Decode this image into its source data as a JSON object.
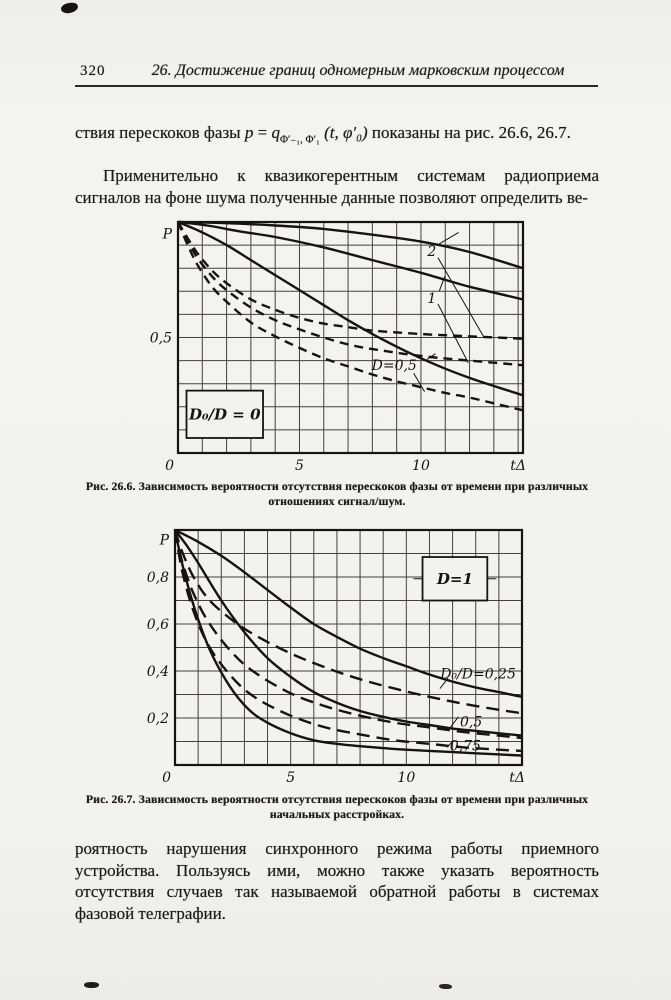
{
  "page": {
    "number": "320",
    "header_title": "26. Достижение границ одномерным марковским процессом"
  },
  "paragraphs": {
    "p1_pre": "ствия перескоков фазы",
    "formula": {
      "p": "p",
      "eq": " = ",
      "q": "q",
      "sub": "Φ′₋₁, Φ′₁",
      "args": "(t, φ′₀)"
    },
    "p1_post": "показаны на рис. 26.6, 26.7.",
    "p2": "Применительно к квазикогерентным системам радиоприема сигналов на фоне шума полученные данные позволяют определить ве-",
    "p3": "роятность нарушения синхронного режима работы приемного устройства. Пользуясь ими, можно также указать вероятность отсутствия случаев так называемой обратной работы в системах фазовой телеграфии."
  },
  "figures": [
    {
      "caption_line1": "Рис. 26.6. Зависимость вероятности отсутствия перескоков фазы от времени при различных",
      "caption_line2": "отношениях сигнал/шум."
    },
    {
      "caption_line1": "Рис. 26.7. Зависимость вероятности отсутствия перескоков фазы от времени при различных",
      "caption_line2": "начальных расстройках."
    }
  ],
  "chart_data": [
    {
      "type": "line",
      "title": "Рис. 26.6. Зависимость вероятности отсутствия перескоков фазы от времени при различных отношениях сигнал/шум.",
      "xlabel": "tΔ",
      "ylabel": "P",
      "xlim": [
        0,
        14.2
      ],
      "ylim": [
        0,
        1
      ],
      "grid": {
        "on": true,
        "x_step": 1,
        "y_step": 0.1
      },
      "legend_position": "none",
      "x_ticks": [
        {
          "v": 0,
          "label": "0"
        },
        {
          "v": 5,
          "label": "5"
        },
        {
          "v": 10,
          "label": "10"
        },
        {
          "v": 14.2,
          "label": "tΔ"
        }
      ],
      "y_ticks": [
        {
          "v": 0.95,
          "label": "P"
        },
        {
          "v": 0.5,
          "label": "0,5"
        }
      ],
      "box_label": {
        "text": "D₀/D = 0",
        "x1": 0.35,
        "y1": 0.065,
        "x2": 3.5,
        "y2": 0.27,
        "side_ticks": false
      },
      "series": [
        {
          "key": "d2-solid",
          "name": "D=2 (сплошная)",
          "style": "solid",
          "points": [
            [
              0,
              1
            ],
            [
              2,
              0.995
            ],
            [
              4,
              0.985
            ],
            [
              6,
              0.97
            ],
            [
              8,
              0.945
            ],
            [
              10,
              0.915
            ],
            [
              12,
              0.87
            ],
            [
              14.2,
              0.8
            ]
          ]
        },
        {
          "key": "d1-solid",
          "name": "D=1 (сплошная)",
          "style": "solid",
          "points": [
            [
              0,
              1
            ],
            [
              1.2,
              0.985
            ],
            [
              2.5,
              0.96
            ],
            [
              4,
              0.935
            ],
            [
              6,
              0.89
            ],
            [
              8,
              0.835
            ],
            [
              10,
              0.78
            ],
            [
              12,
              0.72
            ],
            [
              14.2,
              0.665
            ]
          ]
        },
        {
          "key": "d05-solid",
          "name": "D=0,5 (сплошная)",
          "style": "solid",
          "points": [
            [
              0,
              1
            ],
            [
              1,
              0.955
            ],
            [
              2,
              0.9
            ],
            [
              3,
              0.835
            ],
            [
              4,
              0.77
            ],
            [
              5,
              0.705
            ],
            [
              6,
              0.64
            ],
            [
              7,
              0.575
            ],
            [
              8,
              0.515
            ],
            [
              9,
              0.46
            ],
            [
              10,
              0.41
            ],
            [
              11,
              0.365
            ],
            [
              12,
              0.325
            ],
            [
              13,
              0.29
            ],
            [
              14.2,
              0.25
            ]
          ]
        },
        {
          "key": "d2-dashed",
          "name": "D=2 (штриховая)",
          "style": "dashed",
          "points": [
            [
              0,
              1
            ],
            [
              0.4,
              0.93
            ],
            [
              0.8,
              0.865
            ],
            [
              1.4,
              0.79
            ],
            [
              2,
              0.735
            ],
            [
              3,
              0.665
            ],
            [
              4,
              0.62
            ],
            [
              5,
              0.585
            ],
            [
              6,
              0.56
            ],
            [
              7,
              0.545
            ],
            [
              8,
              0.53
            ],
            [
              10,
              0.515
            ],
            [
              12,
              0.505
            ],
            [
              14.2,
              0.495
            ]
          ]
        },
        {
          "key": "d1-dashed",
          "name": "D=1 (штриховая)",
          "style": "dashed",
          "points": [
            [
              0,
              1
            ],
            [
              0.4,
              0.92
            ],
            [
              0.8,
              0.845
            ],
            [
              1.4,
              0.765
            ],
            [
              2,
              0.705
            ],
            [
              3,
              0.63
            ],
            [
              4,
              0.575
            ],
            [
              5,
              0.535
            ],
            [
              6,
              0.5
            ],
            [
              7,
              0.47
            ],
            [
              8,
              0.45
            ],
            [
              10,
              0.42
            ],
            [
              12,
              0.4
            ],
            [
              14.2,
              0.38
            ]
          ]
        },
        {
          "key": "d05-dashed",
          "name": "D=0,5 (штриховая)",
          "style": "dashed",
          "points": [
            [
              0,
              1
            ],
            [
              0.4,
              0.9
            ],
            [
              0.8,
              0.815
            ],
            [
              1.4,
              0.72
            ],
            [
              2,
              0.655
            ],
            [
              3,
              0.565
            ],
            [
              4,
              0.505
            ],
            [
              5,
              0.455
            ],
            [
              6,
              0.41
            ],
            [
              7,
              0.375
            ],
            [
              8,
              0.34
            ],
            [
              9,
              0.31
            ],
            [
              10,
              0.285
            ],
            [
              11,
              0.26
            ],
            [
              12,
              0.24
            ],
            [
              13,
              0.215
            ],
            [
              14.2,
              0.185
            ]
          ]
        }
      ],
      "labels": [
        {
          "text": "2",
          "x": 10.45,
          "y": 0.875,
          "leaders": [
            [
              [
                10.75,
                0.905
              ],
              [
                11.55,
                0.955
              ]
            ],
            [
              [
                10.7,
                0.845
              ],
              [
                12.6,
                0.5
              ]
            ]
          ]
        },
        {
          "text": "1",
          "x": 10.45,
          "y": 0.67,
          "leaders": [
            [
              [
                10.75,
                0.7
              ],
              [
                10.98,
                0.765
              ]
            ],
            [
              [
                10.7,
                0.645
              ],
              [
                11.95,
                0.39
              ]
            ]
          ]
        },
        {
          "text": "D=0,5",
          "x": 8.9,
          "y": 0.38,
          "leaders": [
            [
              [
                10.25,
                0.405
              ],
              [
                10.6,
                0.43
              ]
            ],
            [
              [
                9.7,
                0.345
              ],
              [
                10.15,
                0.265
              ]
            ]
          ]
        }
      ]
    },
    {
      "type": "line",
      "title": "Рис. 26.7. Зависимость вероятности отсутствия перескоков фазы от времени при различных начальных расстройках.",
      "xlabel": "tΔ",
      "ylabel": "P",
      "xlim": [
        0,
        15
      ],
      "ylim": [
        0,
        1
      ],
      "grid": {
        "on": true,
        "x_step": 1,
        "y_step": 0.1
      },
      "legend_position": "none",
      "x_ticks": [
        {
          "v": 0,
          "label": "0"
        },
        {
          "v": 5,
          "label": "5"
        },
        {
          "v": 10,
          "label": "10"
        },
        {
          "v": 15,
          "label": "tΔ"
        }
      ],
      "y_ticks": [
        {
          "v": 0.96,
          "label": "P"
        },
        {
          "v": 0.8,
          "label": "0,8"
        },
        {
          "v": 0.6,
          "label": "0,6"
        },
        {
          "v": 0.4,
          "label": "0,4"
        },
        {
          "v": 0.2,
          "label": "0,2"
        }
      ],
      "box_label": {
        "text": "D=1",
        "x1": 10.7,
        "y1": 0.7,
        "x2": 13.5,
        "y2": 0.885,
        "side_ticks": true
      },
      "series": [
        {
          "key": "r025-solid",
          "name": "D₀/D=0,25 (сплошная)",
          "style": "solid",
          "points": [
            [
              0,
              1
            ],
            [
              1,
              0.95
            ],
            [
              2,
              0.89
            ],
            [
              3,
              0.82
            ],
            [
              4,
              0.745
            ],
            [
              5,
              0.67
            ],
            [
              6,
              0.6
            ],
            [
              7,
              0.545
            ],
            [
              8,
              0.495
            ],
            [
              9,
              0.455
            ],
            [
              10,
              0.42
            ],
            [
              11,
              0.385
            ],
            [
              12,
              0.355
            ],
            [
              13,
              0.33
            ],
            [
              14,
              0.31
            ],
            [
              15,
              0.29
            ]
          ]
        },
        {
          "key": "r05-solid",
          "name": "D₀/D=0,5 (сплошная)",
          "style": "solid",
          "points": [
            [
              0,
              1
            ],
            [
              0.5,
              0.935
            ],
            [
              1,
              0.86
            ],
            [
              2,
              0.7
            ],
            [
              3,
              0.565
            ],
            [
              4,
              0.455
            ],
            [
              5,
              0.375
            ],
            [
              6,
              0.31
            ],
            [
              7,
              0.265
            ],
            [
              8,
              0.23
            ],
            [
              9,
              0.205
            ],
            [
              10,
              0.185
            ],
            [
              11,
              0.17
            ],
            [
              12,
              0.155
            ],
            [
              13,
              0.145
            ],
            [
              14,
              0.135
            ],
            [
              15,
              0.125
            ]
          ]
        },
        {
          "key": "r075-solid",
          "name": "D₀/D=0,75 (сплошная)",
          "style": "solid",
          "points": [
            [
              0,
              1
            ],
            [
              0.4,
              0.82
            ],
            [
              1,
              0.62
            ],
            [
              1.6,
              0.47
            ],
            [
              2.4,
              0.33
            ],
            [
              3.2,
              0.235
            ],
            [
              4,
              0.18
            ],
            [
              5,
              0.135
            ],
            [
              6,
              0.105
            ],
            [
              7,
              0.09
            ],
            [
              8,
              0.08
            ],
            [
              9,
              0.072
            ],
            [
              10,
              0.065
            ],
            [
              12,
              0.055
            ],
            [
              13,
              0.05
            ],
            [
              15,
              0.04
            ]
          ]
        },
        {
          "key": "r025-dashed",
          "name": "D₀/D=0,25 (штриховая)",
          "style": "dashed",
          "points": [
            [
              0,
              1
            ],
            [
              0.3,
              0.91
            ],
            [
              0.8,
              0.8
            ],
            [
              1.5,
              0.7
            ],
            [
              2.5,
              0.615
            ],
            [
              3.5,
              0.55
            ],
            [
              5,
              0.475
            ],
            [
              6.5,
              0.415
            ],
            [
              8,
              0.365
            ],
            [
              9.5,
              0.325
            ],
            [
              11,
              0.29
            ],
            [
              12.5,
              0.26
            ],
            [
              14,
              0.235
            ],
            [
              15,
              0.22
            ]
          ]
        },
        {
          "key": "r05-dashed",
          "name": "D₀/D=0,5 (штриховая)",
          "style": "dashed",
          "points": [
            [
              0,
              1
            ],
            [
              0.3,
              0.87
            ],
            [
              0.8,
              0.73
            ],
            [
              1.5,
              0.6
            ],
            [
              2.5,
              0.475
            ],
            [
              3.5,
              0.39
            ],
            [
              5,
              0.305
            ],
            [
              6.5,
              0.25
            ],
            [
              8,
              0.21
            ],
            [
              9.5,
              0.18
            ],
            [
              11,
              0.16
            ],
            [
              12.5,
              0.14
            ],
            [
              14,
              0.125
            ],
            [
              15,
              0.115
            ]
          ]
        },
        {
          "key": "r075-dashed",
          "name": "D₀/D=0,75 (штриховая)",
          "style": "dashed",
          "points": [
            [
              0,
              1
            ],
            [
              0.3,
              0.83
            ],
            [
              0.8,
              0.655
            ],
            [
              1.5,
              0.5
            ],
            [
              2.5,
              0.37
            ],
            [
              3.5,
              0.285
            ],
            [
              5,
              0.21
            ],
            [
              6.5,
              0.16
            ],
            [
              8,
              0.13
            ],
            [
              9.5,
              0.105
            ],
            [
              11,
              0.09
            ],
            [
              12.5,
              0.075
            ],
            [
              14,
              0.065
            ],
            [
              15,
              0.06
            ]
          ]
        }
      ],
      "labels": [
        {
          "text": "D₀/D=0,25",
          "x": 13.1,
          "y": 0.39,
          "leaders": [
            [
              [
                11.8,
                0.37
              ],
              [
                11.45,
                0.325
              ]
            ]
          ]
        },
        {
          "text": "0,5",
          "x": 12.8,
          "y": 0.185,
          "leaders": [
            [
              [
                12.25,
                0.205
              ],
              [
                11.9,
                0.16
              ]
            ]
          ]
        },
        {
          "text": "0,75",
          "x": 12.55,
          "y": 0.082,
          "leaders": [
            [
              [
                12.05,
                0.105
              ],
              [
                11.75,
                0.075
              ]
            ]
          ]
        }
      ]
    }
  ]
}
